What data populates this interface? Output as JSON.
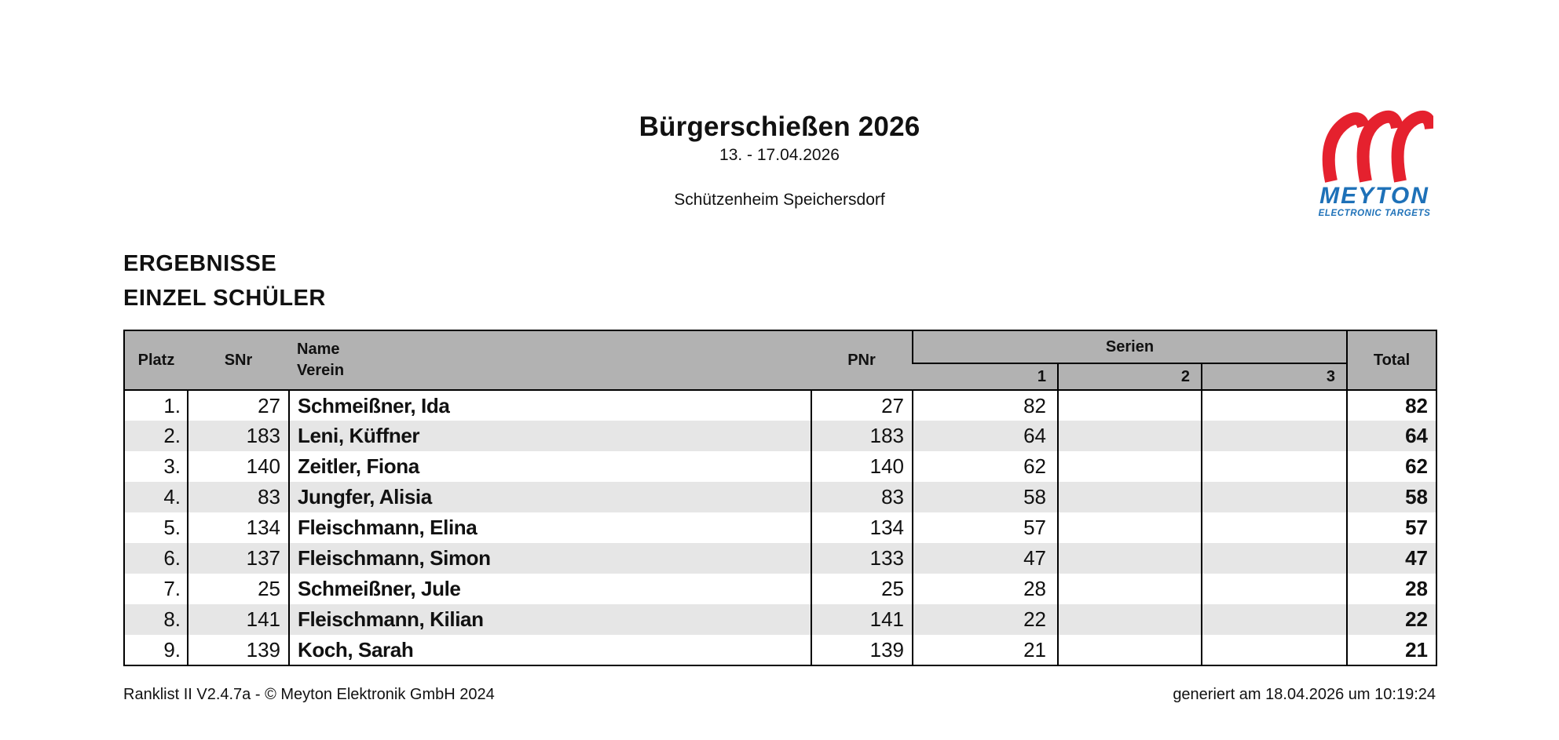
{
  "header": {
    "title": "Bürgerschießen 2026",
    "date_range": "13. - 17.04.2026",
    "venue": "Schützenheim Speichersdorf"
  },
  "logo": {
    "brand": "MEYTON",
    "tagline": "ELECTRONIC TARGETS",
    "red": "#e5212e",
    "blue": "#1e71b8"
  },
  "section": {
    "line1": "ERGEBNISSE",
    "line2": "EINZEL SCHÜLER"
  },
  "table": {
    "header_bg": "#b2b2b2",
    "stripe_color": "#e6e6e6",
    "columns": {
      "platz": "Platz",
      "snr": "SNr",
      "name": "Name",
      "verein": "Verein",
      "pnr": "PNr",
      "serien": "Serien",
      "serie_subs": [
        "1",
        "2",
        "3"
      ],
      "total": "Total"
    },
    "rows": [
      {
        "platz": "1.",
        "snr": "27",
        "name": "Schmeißner, Ida",
        "pnr": "27",
        "s1": "82",
        "s2": "",
        "s3": "",
        "total": "82"
      },
      {
        "platz": "2.",
        "snr": "183",
        "name": "Leni, Küffner",
        "pnr": "183",
        "s1": "64",
        "s2": "",
        "s3": "",
        "total": "64"
      },
      {
        "platz": "3.",
        "snr": "140",
        "name": "Zeitler, Fiona",
        "pnr": "140",
        "s1": "62",
        "s2": "",
        "s3": "",
        "total": "62"
      },
      {
        "platz": "4.",
        "snr": "83",
        "name": "Jungfer, Alisia",
        "pnr": "83",
        "s1": "58",
        "s2": "",
        "s3": "",
        "total": "58"
      },
      {
        "platz": "5.",
        "snr": "134",
        "name": "Fleischmann, Elina",
        "pnr": "134",
        "s1": "57",
        "s2": "",
        "s3": "",
        "total": "57"
      },
      {
        "platz": "6.",
        "snr": "137",
        "name": "Fleischmann, Simon",
        "pnr": "133",
        "s1": "47",
        "s2": "",
        "s3": "",
        "total": "47"
      },
      {
        "platz": "7.",
        "snr": "25",
        "name": "Schmeißner, Jule",
        "pnr": "25",
        "s1": "28",
        "s2": "",
        "s3": "",
        "total": "28"
      },
      {
        "platz": "8.",
        "snr": "141",
        "name": "Fleischmann, Kilian",
        "pnr": "141",
        "s1": "22",
        "s2": "",
        "s3": "",
        "total": "22"
      },
      {
        "platz": "9.",
        "snr": "139",
        "name": "Koch, Sarah",
        "pnr": "139",
        "s1": "21",
        "s2": "",
        "s3": "",
        "total": "21"
      }
    ]
  },
  "footer": {
    "left": "Ranklist II V2.4.7a - © Meyton Elektronik GmbH 2024",
    "right": "generiert am 18.04.2026 um 10:19:24"
  }
}
